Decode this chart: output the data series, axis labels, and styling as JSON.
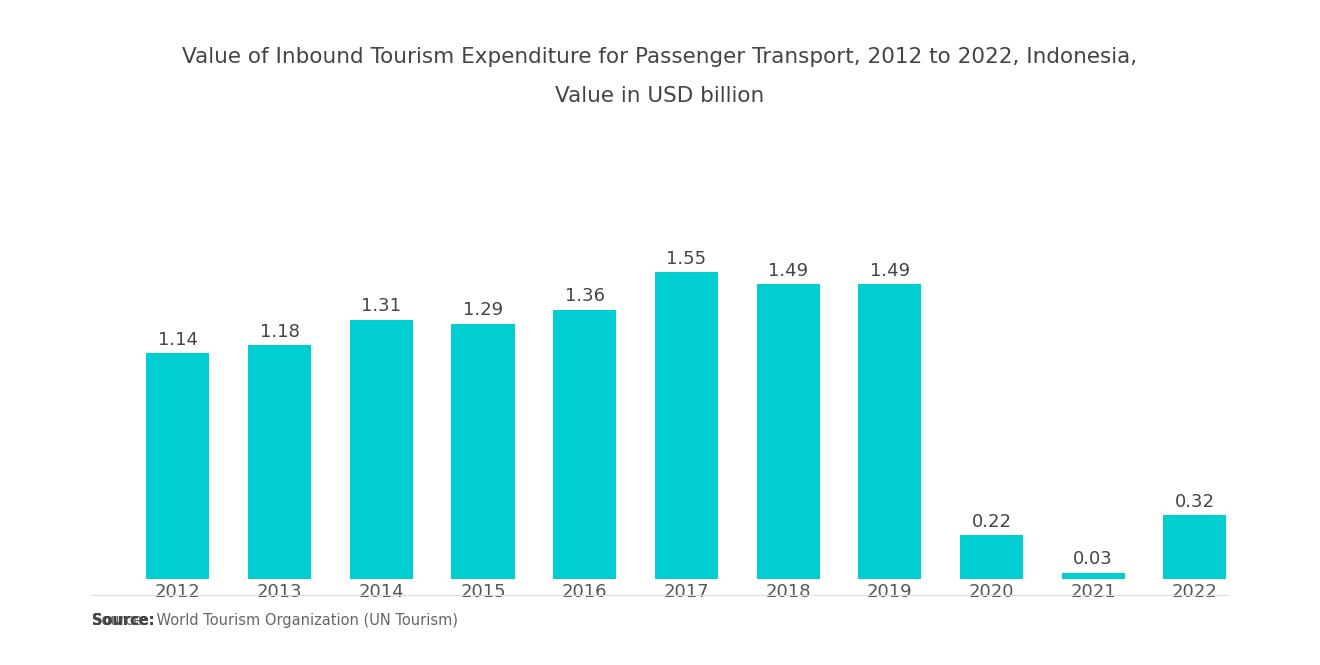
{
  "title_line1": "Value of Inbound Tourism Expenditure for Passenger Transport, 2012 to 2022, Indonesia,",
  "title_line2": "Value in USD billion",
  "categories": [
    "2012",
    "2013",
    "2014",
    "2015",
    "2016",
    "2017",
    "2018",
    "2019",
    "2020",
    "2021",
    "2022"
  ],
  "values": [
    1.14,
    1.18,
    1.31,
    1.29,
    1.36,
    1.55,
    1.49,
    1.49,
    0.22,
    0.03,
    0.32
  ],
  "bar_color": "#00CED1",
  "background_color": "#FFFFFF",
  "title_fontsize": 15.5,
  "label_fontsize": 13,
  "tick_fontsize": 13,
  "source_bold": "Source:",
  "source_normal": "  World Tourism Organization (UN Tourism)",
  "ylim": [
    0,
    1.85
  ]
}
